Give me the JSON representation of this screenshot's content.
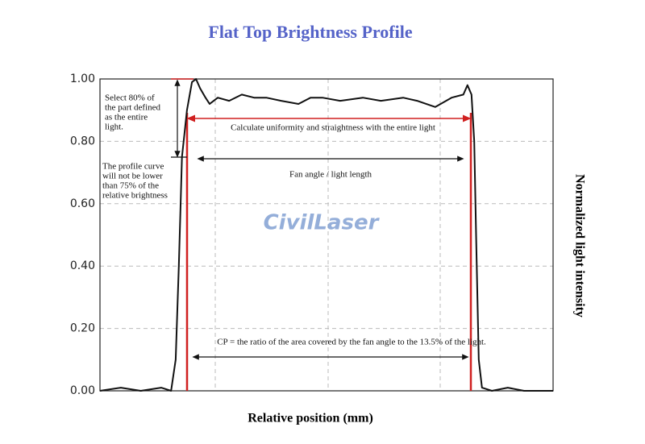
{
  "chart_data": {
    "type": "line",
    "title": "Flat Top Brightness Profile",
    "x_label": "Relative position (mm)",
    "y_label": "Normalized light intensity",
    "watermark": "CivilLaser",
    "annotations": {
      "select": [
        "Select 80% of",
        "the part defined",
        "as the entire",
        "light."
      ],
      "profile": [
        "The profile curve",
        "will not be lower",
        "than 75% of the",
        "relative brightness"
      ],
      "uniformity": "Calculate uniformity and straightness with the entire light",
      "fan_angle": "Fan angle / light length",
      "cp": "CP = the ratio of the area covered by the fan angle to the 13.5% of the light."
    },
    "x": [
      0,
      4.6,
      9,
      13.5,
      15.7,
      16.7,
      17.4,
      18.1,
      19.2,
      20.3,
      21.2,
      22.1,
      23.3,
      24.2,
      26,
      28.5,
      31.3,
      34,
      36.7,
      40,
      43.8,
      46.5,
      49.1,
      53,
      58,
      62,
      66.9,
      70,
      74,
      77.6,
      80.2,
      81.1,
      82,
      82.6,
      83,
      83.6,
      84.3,
      86.5,
      90,
      93.6,
      100
    ],
    "series": [
      {
        "color": "#111111",
        "values": [
          0,
          0.01,
          0,
          0.01,
          0,
          0.1,
          0.4,
          0.75,
          0.9,
          0.99,
          1.0,
          0.97,
          0.94,
          0.92,
          0.94,
          0.93,
          0.95,
          0.94,
          0.94,
          0.93,
          0.92,
          0.94,
          0.94,
          0.93,
          0.94,
          0.93,
          0.94,
          0.93,
          0.91,
          0.94,
          0.95,
          0.98,
          0.95,
          0.8,
          0.5,
          0.1,
          0.01,
          0,
          0.01,
          0,
          0
        ]
      }
    ],
    "xlim": [
      0,
      100
    ],
    "ylim": [
      0,
      1
    ],
    "yticks": [
      {
        "value": 0,
        "label": "0.00"
      },
      {
        "value": 0.2,
        "label": "0.20"
      },
      {
        "value": 0.4,
        "label": "0.40"
      },
      {
        "value": 0.6,
        "label": "0.60"
      },
      {
        "value": 0.8,
        "label": "0.80"
      },
      {
        "value": 1,
        "label": "1.00"
      }
    ],
    "grid": true
  }
}
